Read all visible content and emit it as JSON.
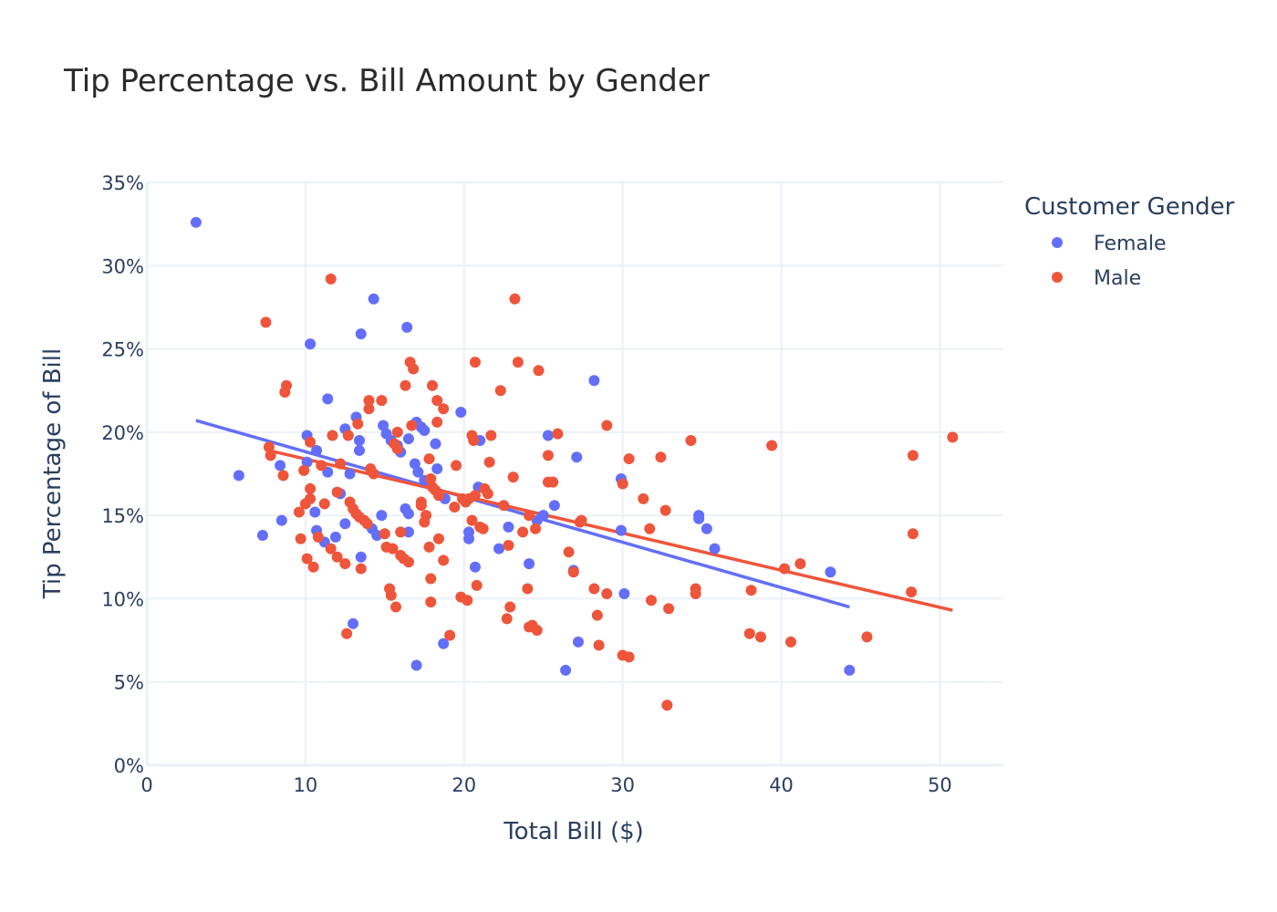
{
  "chart_data": {
    "type": "scatter",
    "title": "Tip Percentage vs. Bill Amount by Gender",
    "xlabel": "Total Bill ($)",
    "ylabel": "Tip Percentage of Bill",
    "xlim": [
      0,
      54
    ],
    "ylim": [
      0,
      35
    ],
    "x_ticks": [
      0,
      10,
      20,
      30,
      40,
      50
    ],
    "x_tick_labels": [
      "0",
      "10",
      "20",
      "30",
      "40",
      "50"
    ],
    "y_ticks": [
      0,
      5,
      10,
      15,
      20,
      25,
      30,
      35
    ],
    "y_tick_labels": [
      "0%",
      "5%",
      "10%",
      "15%",
      "20%",
      "25%",
      "30%",
      "35%"
    ],
    "grid": true,
    "legend": {
      "title": "Customer Gender",
      "position": "top-right"
    },
    "series": [
      {
        "name": "Female",
        "color": "#636efa",
        "trendline": {
          "x": [
            3.1,
            44.3
          ],
          "y": [
            20.7,
            9.5
          ]
        },
        "points": [
          [
            3.1,
            32.6
          ],
          [
            5.8,
            17.4
          ],
          [
            7.3,
            13.8
          ],
          [
            8.4,
            18.0
          ],
          [
            8.5,
            14.7
          ],
          [
            10.1,
            19.8
          ],
          [
            10.1,
            18.2
          ],
          [
            10.3,
            25.3
          ],
          [
            10.6,
            15.2
          ],
          [
            10.7,
            14.1
          ],
          [
            10.7,
            18.9
          ],
          [
            11.2,
            13.4
          ],
          [
            11.4,
            17.6
          ],
          [
            11.4,
            22.0
          ],
          [
            11.9,
            13.7
          ],
          [
            12.2,
            16.3
          ],
          [
            12.5,
            14.5
          ],
          [
            12.5,
            20.2
          ],
          [
            12.8,
            17.5
          ],
          [
            13.0,
            8.5
          ],
          [
            13.2,
            20.9
          ],
          [
            13.4,
            18.9
          ],
          [
            13.4,
            19.5
          ],
          [
            13.5,
            12.5
          ],
          [
            13.5,
            25.9
          ],
          [
            14.2,
            14.2
          ],
          [
            14.3,
            28.0
          ],
          [
            14.5,
            13.8
          ],
          [
            14.8,
            15.0
          ],
          [
            14.9,
            20.4
          ],
          [
            15.1,
            19.9
          ],
          [
            15.4,
            19.5
          ],
          [
            15.8,
            19.2
          ],
          [
            16.0,
            18.8
          ],
          [
            16.3,
            15.4
          ],
          [
            16.4,
            26.3
          ],
          [
            16.5,
            15.1
          ],
          [
            16.5,
            14.0
          ],
          [
            16.5,
            19.6
          ],
          [
            16.9,
            18.1
          ],
          [
            17.0,
            20.6
          ],
          [
            17.1,
            17.6
          ],
          [
            17.0,
            6.0
          ],
          [
            17.3,
            20.3
          ],
          [
            17.5,
            20.1
          ],
          [
            17.5,
            17.1
          ],
          [
            18.2,
            19.3
          ],
          [
            18.3,
            17.8
          ],
          [
            18.7,
            7.3
          ],
          [
            18.8,
            16.0
          ],
          [
            19.8,
            21.2
          ],
          [
            20.3,
            13.6
          ],
          [
            20.3,
            14.0
          ],
          [
            20.7,
            11.9
          ],
          [
            20.9,
            16.7
          ],
          [
            21.0,
            19.5
          ],
          [
            22.2,
            13.0
          ],
          [
            22.8,
            14.3
          ],
          [
            24.1,
            12.1
          ],
          [
            24.6,
            14.7
          ],
          [
            25.0,
            15.0
          ],
          [
            25.3,
            19.8
          ],
          [
            25.7,
            15.6
          ],
          [
            26.4,
            5.7
          ],
          [
            26.9,
            11.7
          ],
          [
            27.1,
            18.5
          ],
          [
            27.2,
            7.4
          ],
          [
            28.2,
            23.1
          ],
          [
            29.9,
            17.2
          ],
          [
            29.9,
            14.1
          ],
          [
            30.1,
            10.3
          ],
          [
            34.8,
            15.0
          ],
          [
            34.8,
            14.8
          ],
          [
            35.3,
            14.2
          ],
          [
            35.8,
            13.0
          ],
          [
            43.1,
            11.6
          ],
          [
            44.3,
            5.7
          ]
        ]
      },
      {
        "name": "Male",
        "color": "#ef553b",
        "trendline": {
          "x": [
            7.7,
            50.8
          ],
          "y": [
            18.9,
            9.3
          ]
        },
        "points": [
          [
            7.5,
            26.6
          ],
          [
            7.7,
            19.1
          ],
          [
            7.8,
            18.6
          ],
          [
            8.6,
            17.4
          ],
          [
            8.7,
            22.4
          ],
          [
            8.8,
            22.8
          ],
          [
            9.6,
            15.2
          ],
          [
            9.7,
            13.6
          ],
          [
            9.9,
            17.7
          ],
          [
            10.0,
            15.7
          ],
          [
            10.1,
            12.4
          ],
          [
            10.3,
            16.6
          ],
          [
            10.3,
            19.4
          ],
          [
            10.3,
            16.0
          ],
          [
            10.5,
            11.9
          ],
          [
            10.8,
            13.7
          ],
          [
            11.0,
            18.0
          ],
          [
            11.2,
            15.7
          ],
          [
            11.6,
            29.2
          ],
          [
            11.6,
            13.0
          ],
          [
            11.7,
            19.8
          ],
          [
            12.0,
            16.4
          ],
          [
            12.0,
            12.5
          ],
          [
            12.2,
            18.1
          ],
          [
            12.5,
            12.1
          ],
          [
            12.6,
            7.9
          ],
          [
            12.7,
            19.8
          ],
          [
            12.8,
            15.8
          ],
          [
            13.0,
            15.4
          ],
          [
            13.2,
            15.1
          ],
          [
            13.3,
            20.5
          ],
          [
            13.4,
            14.9
          ],
          [
            13.5,
            11.8
          ],
          [
            13.7,
            14.7
          ],
          [
            13.9,
            14.5
          ],
          [
            14.0,
            21.9
          ],
          [
            14.0,
            21.4
          ],
          [
            14.1,
            17.8
          ],
          [
            14.3,
            17.5
          ],
          [
            14.8,
            21.9
          ],
          [
            15.0,
            13.9
          ],
          [
            15.1,
            13.1
          ],
          [
            15.3,
            10.6
          ],
          [
            15.4,
            10.2
          ],
          [
            15.5,
            13.0
          ],
          [
            15.6,
            19.3
          ],
          [
            15.7,
            9.5
          ],
          [
            15.8,
            20.0
          ],
          [
            15.8,
            19.0
          ],
          [
            16.0,
            12.6
          ],
          [
            16.0,
            14.0
          ],
          [
            16.2,
            12.4
          ],
          [
            16.3,
            22.8
          ],
          [
            16.5,
            12.2
          ],
          [
            16.6,
            24.2
          ],
          [
            16.7,
            20.4
          ],
          [
            16.8,
            23.8
          ],
          [
            17.3,
            15.8
          ],
          [
            17.3,
            15.6
          ],
          [
            17.5,
            14.6
          ],
          [
            17.6,
            15.0
          ],
          [
            17.8,
            18.4
          ],
          [
            17.8,
            13.1
          ],
          [
            17.9,
            11.2
          ],
          [
            17.9,
            9.8
          ],
          [
            17.9,
            17.2
          ],
          [
            18.0,
            22.8
          ],
          [
            18.0,
            16.7
          ],
          [
            18.2,
            16.5
          ],
          [
            18.3,
            21.9
          ],
          [
            18.3,
            20.6
          ],
          [
            18.4,
            13.6
          ],
          [
            18.4,
            16.2
          ],
          [
            18.7,
            21.4
          ],
          [
            18.7,
            12.3
          ],
          [
            19.1,
            7.8
          ],
          [
            19.4,
            15.5
          ],
          [
            19.5,
            18.0
          ],
          [
            19.8,
            10.1
          ],
          [
            19.9,
            16.0
          ],
          [
            20.1,
            15.8
          ],
          [
            20.2,
            9.9
          ],
          [
            20.3,
            16.0
          ],
          [
            20.5,
            14.7
          ],
          [
            20.5,
            19.8
          ],
          [
            20.6,
            19.5
          ],
          [
            20.7,
            24.2
          ],
          [
            20.7,
            16.2
          ],
          [
            20.8,
            10.8
          ],
          [
            21.0,
            14.3
          ],
          [
            21.2,
            14.2
          ],
          [
            21.3,
            16.6
          ],
          [
            21.5,
            16.3
          ],
          [
            21.6,
            18.2
          ],
          [
            21.7,
            19.8
          ],
          [
            22.3,
            22.5
          ],
          [
            22.5,
            15.6
          ],
          [
            22.7,
            8.8
          ],
          [
            22.8,
            13.2
          ],
          [
            22.9,
            9.5
          ],
          [
            23.1,
            17.3
          ],
          [
            23.2,
            28.0
          ],
          [
            23.4,
            24.2
          ],
          [
            23.7,
            14.0
          ],
          [
            24.0,
            10.6
          ],
          [
            24.1,
            15.0
          ],
          [
            24.1,
            8.3
          ],
          [
            24.3,
            8.4
          ],
          [
            24.5,
            14.2
          ],
          [
            24.6,
            8.1
          ],
          [
            24.7,
            23.7
          ],
          [
            25.3,
            18.6
          ],
          [
            25.3,
            17.0
          ],
          [
            25.6,
            17.0
          ],
          [
            25.9,
            19.9
          ],
          [
            26.6,
            12.8
          ],
          [
            26.9,
            11.6
          ],
          [
            27.3,
            14.6
          ],
          [
            27.4,
            14.7
          ],
          [
            28.2,
            10.6
          ],
          [
            28.4,
            9.0
          ],
          [
            28.5,
            7.2
          ],
          [
            29.0,
            10.3
          ],
          [
            29.0,
            20.4
          ],
          [
            30.0,
            6.6
          ],
          [
            30.0,
            16.9
          ],
          [
            30.4,
            6.5
          ],
          [
            30.4,
            18.4
          ],
          [
            31.3,
            16.0
          ],
          [
            31.7,
            14.2
          ],
          [
            31.8,
            9.9
          ],
          [
            32.4,
            18.5
          ],
          [
            32.7,
            15.3
          ],
          [
            32.8,
            3.6
          ],
          [
            32.9,
            9.4
          ],
          [
            34.3,
            19.5
          ],
          [
            34.6,
            10.6
          ],
          [
            34.6,
            10.3
          ],
          [
            38.0,
            7.9
          ],
          [
            38.1,
            10.5
          ],
          [
            38.7,
            7.7
          ],
          [
            39.4,
            19.2
          ],
          [
            40.2,
            11.8
          ],
          [
            40.6,
            7.4
          ],
          [
            41.2,
            12.1
          ],
          [
            45.4,
            7.7
          ],
          [
            48.2,
            10.4
          ],
          [
            48.3,
            13.9
          ],
          [
            48.3,
            18.6
          ],
          [
            50.8,
            19.7
          ]
        ]
      }
    ]
  }
}
